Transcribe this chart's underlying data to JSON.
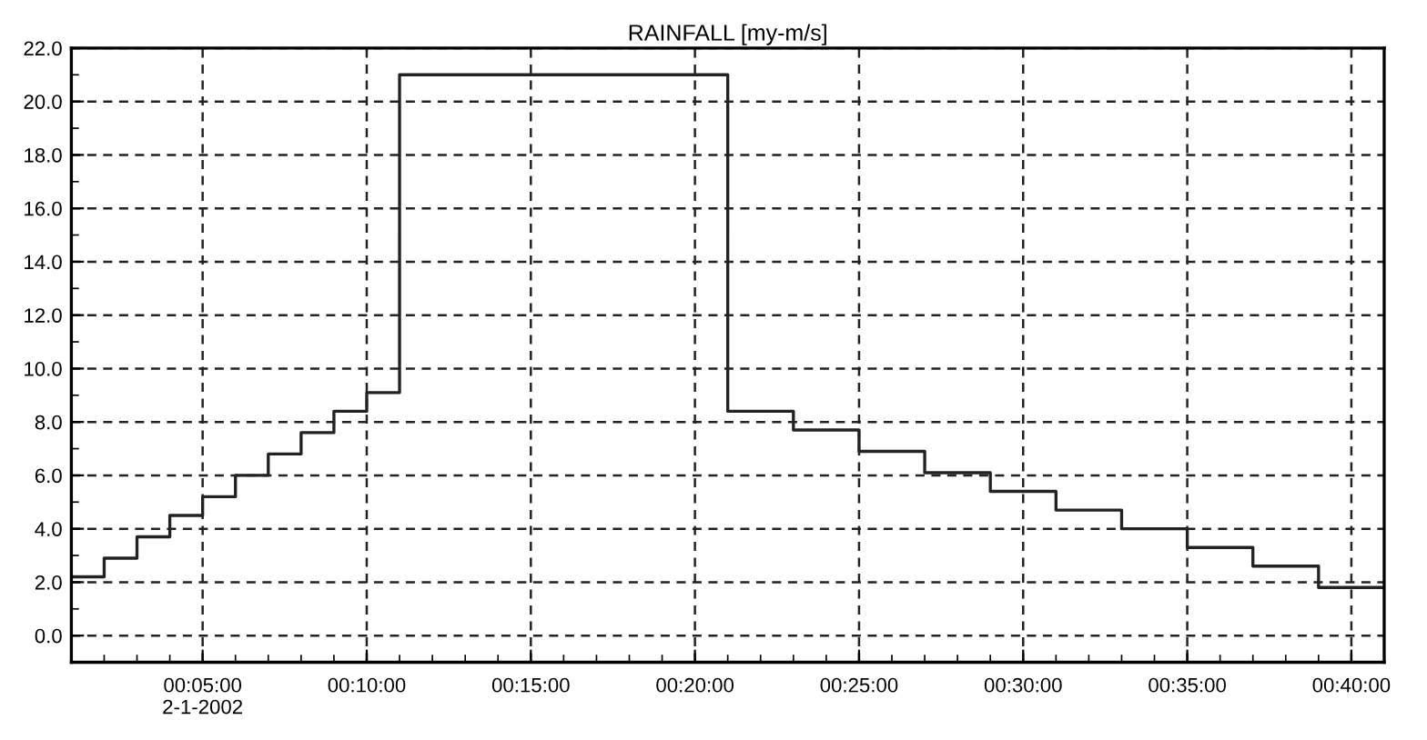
{
  "chart_data": {
    "type": "step",
    "title": "RAINFALL [my-m/s]",
    "x": [
      "2002-01-02T00:01",
      "2002-01-02T00:02",
      "2002-01-02T00:03",
      "2002-01-02T00:04",
      "2002-01-02T00:05",
      "2002-01-02T00:06",
      "2002-01-02T00:07",
      "2002-01-02T00:08",
      "2002-01-02T00:09",
      "2002-01-02T00:10",
      "2002-01-02T00:11",
      "2002-01-02T00:21",
      "2002-01-02T00:23",
      "2002-01-02T00:25",
      "2002-01-02T00:27",
      "2002-01-02T00:29",
      "2002-01-02T00:31",
      "2002-01-02T00:33",
      "2002-01-02T00:35",
      "2002-01-02T00:37",
      "2002-01-02T00:39",
      "2002-01-02T00:41"
    ],
    "series": [
      {
        "color": "#222222",
        "values": [
          2.2,
          2.9,
          3.7,
          4.5,
          5.2,
          6.0,
          6.8,
          7.6,
          8.4,
          9.1,
          21.0,
          8.4,
          7.7,
          6.9,
          6.1,
          5.4,
          4.7,
          4.0,
          3.3,
          2.6,
          1.8,
          1.8
        ]
      }
    ],
    "xlim": [
      "2002-01-02T00:01",
      "2002-01-02T00:41"
    ],
    "xticks": [
      {
        "value": "2002-01-02T00:05",
        "label": "00:05:00\n2-1-2002"
      },
      {
        "value": "2002-01-02T00:10",
        "label": "00:10:00"
      },
      {
        "value": "2002-01-02T00:15",
        "label": "00:15:00"
      },
      {
        "value": "2002-01-02T00:20",
        "label": "00:20:00"
      },
      {
        "value": "2002-01-02T00:25",
        "label": "00:25:00"
      },
      {
        "value": "2002-01-02T00:30",
        "label": "00:30:00"
      },
      {
        "value": "2002-01-02T00:35",
        "label": "00:35:00"
      },
      {
        "value": "2002-01-02T00:40",
        "label": "00:40:00"
      }
    ],
    "ylim": [
      -1,
      22
    ],
    "yticks": [
      {
        "value": 0,
        "label": "0.0"
      },
      {
        "value": 2,
        "label": "2.0"
      },
      {
        "value": 4,
        "label": "4.0"
      },
      {
        "value": 6,
        "label": "6.0"
      },
      {
        "value": 8,
        "label": "8.0"
      },
      {
        "value": 10,
        "label": "10.0"
      },
      {
        "value": 12,
        "label": "12.0"
      },
      {
        "value": 14,
        "label": "14.0"
      },
      {
        "value": 16,
        "label": "16.0"
      },
      {
        "value": 18,
        "label": "18.0"
      },
      {
        "value": 20,
        "label": "20.0"
      },
      {
        "value": 22,
        "label": "22.0"
      }
    ],
    "grid": true,
    "line_style": "solid",
    "marker": "none"
  }
}
